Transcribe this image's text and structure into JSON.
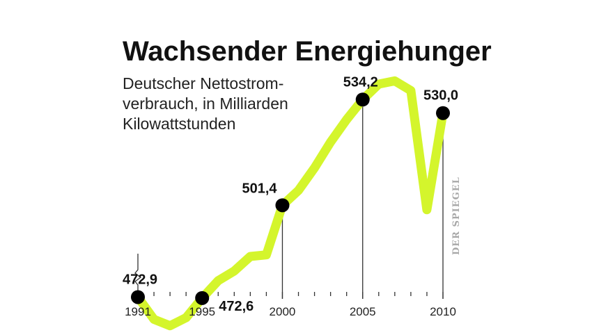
{
  "chart_data": {
    "type": "line",
    "title": "Wachsender Energiehunger",
    "subtitle_lines": [
      "Deutscher Nettostrom-",
      "verbrauch, in Milliarden",
      "Kilowattstunden"
    ],
    "source": "DER SPIEGEL",
    "unit": "Mrd. kWh",
    "x": [
      1991,
      1992,
      1993,
      1994,
      1995,
      1996,
      1997,
      1998,
      1999,
      2000,
      2001,
      2002,
      2003,
      2004,
      2005,
      2006,
      2007,
      2008,
      2009,
      2010
    ],
    "y": [
      472.9,
      466.0,
      464.0,
      466.5,
      472.6,
      478.0,
      481.0,
      485.5,
      486.0,
      501.4,
      506.0,
      513.0,
      521.0,
      528.0,
      534.2,
      539.0,
      540.0,
      537.0,
      500.0,
      530.0
    ],
    "xlim": [
      1991,
      2010
    ],
    "ylim": [
      440,
      550
    ],
    "highlighted_points": [
      {
        "year": 1991,
        "value": 472.9,
        "label": "472,9",
        "placement": "above"
      },
      {
        "year": 1995,
        "value": 472.6,
        "label": "472,6",
        "placement": "right"
      },
      {
        "year": 2000,
        "value": 501.4,
        "label": "501,4",
        "placement": "above-left"
      },
      {
        "year": 2005,
        "value": 534.2,
        "label": "534,2",
        "placement": "above"
      },
      {
        "year": 2010,
        "value": 530.0,
        "label": "530,0",
        "placement": "above"
      }
    ],
    "tick_labels": [
      "1991",
      "1995",
      "2000",
      "2005",
      "2010"
    ],
    "colors": {
      "line": "#d4f52c",
      "marker": "#000000",
      "axis": "#333333",
      "text": "#111111",
      "source": "#a8a8a8"
    }
  }
}
